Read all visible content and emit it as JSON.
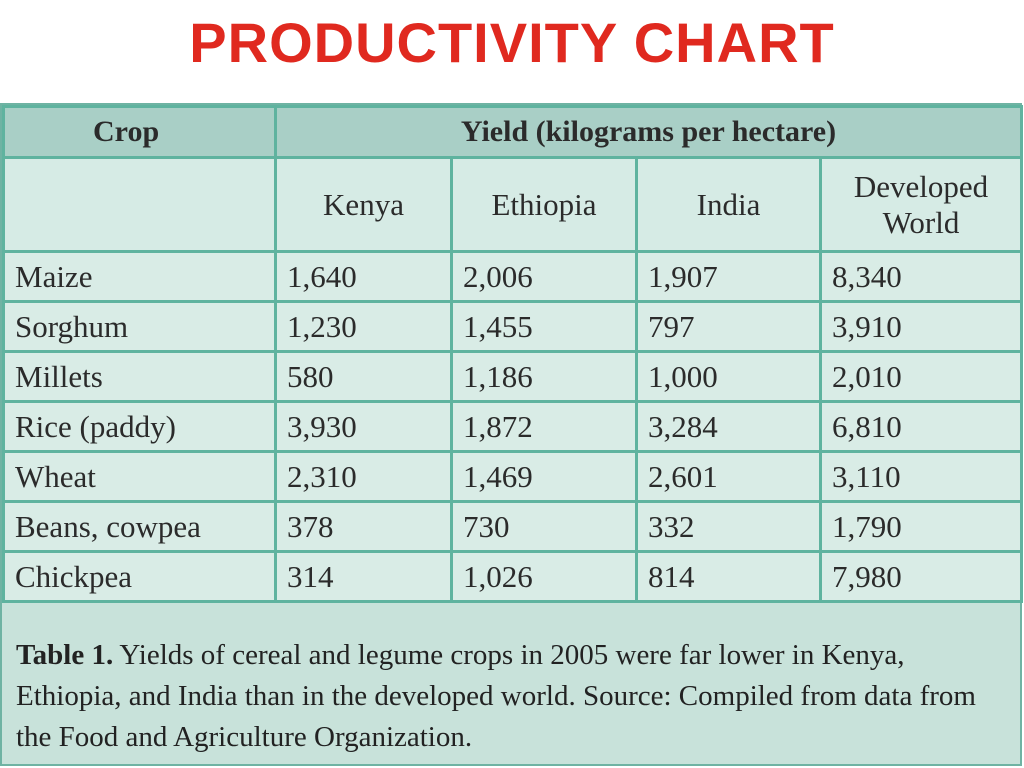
{
  "title": "PRODUCTIVITY  CHART",
  "table": {
    "crop_header": "Crop",
    "yield_header": "Yield (kilograms per hectare)",
    "columns": [
      "Kenya",
      "Ethiopia",
      "India",
      "Developed World"
    ],
    "rows": [
      {
        "crop": "Maize",
        "values": [
          "1,640",
          "2,006",
          "1,907",
          "8,340"
        ]
      },
      {
        "crop": "Sorghum",
        "values": [
          "1,230",
          "1,455",
          "797",
          "3,910"
        ]
      },
      {
        "crop": "Millets",
        "values": [
          "580",
          "1,186",
          "1,000",
          "2,010"
        ]
      },
      {
        "crop": "Rice (paddy)",
        "values": [
          "3,930",
          "1,872",
          "3,284",
          "6,810"
        ]
      },
      {
        "crop": "Wheat",
        "values": [
          "2,310",
          "1,469",
          "2,601",
          "3,110"
        ]
      },
      {
        "crop": "Beans, cowpea",
        "values": [
          "378",
          "730",
          "332",
          "1,790"
        ]
      },
      {
        "crop": "Chickpea",
        "values": [
          "314",
          "1,026",
          "814",
          "7,980"
        ]
      }
    ]
  },
  "caption": {
    "label": "Table 1.",
    "text": " Yields of cereal and legume crops in 2005 were far lower in Kenya, Ethiopia, and India than in the developed world. Source: Compiled from data from the Food and Agriculture Organization."
  },
  "colors": {
    "title": "#e0291f",
    "panel_bg": "#c8e2da",
    "grid": "#5fb39f",
    "header_bg": "#a9cfc6"
  }
}
